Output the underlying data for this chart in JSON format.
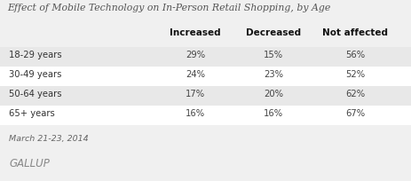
{
  "title": "Effect of Mobile Technology on In-Person Retail Shopping, by Age",
  "columns": [
    "Increased",
    "Decreased",
    "Not affected"
  ],
  "rows": [
    {
      "label": "18-29 years",
      "values": [
        "29%",
        "15%",
        "56%"
      ]
    },
    {
      "label": "30-49 years",
      "values": [
        "24%",
        "23%",
        "52%"
      ]
    },
    {
      "label": "50-64 years",
      "values": [
        "17%",
        "20%",
        "62%"
      ]
    },
    {
      "label": "65+ years",
      "values": [
        "16%",
        "16%",
        "67%"
      ]
    }
  ],
  "footnote": "March 21-23, 2014",
  "source": "GALLUP",
  "fig_bg": "#f0f0f0",
  "table_bg": "#ffffff",
  "row_shaded": "#e8e8e8",
  "row_plain": "#ffffff",
  "title_color": "#555555",
  "header_color": "#111111",
  "cell_color": "#444444",
  "label_color": "#333333",
  "footnote_color": "#666666",
  "source_color": "#888888"
}
